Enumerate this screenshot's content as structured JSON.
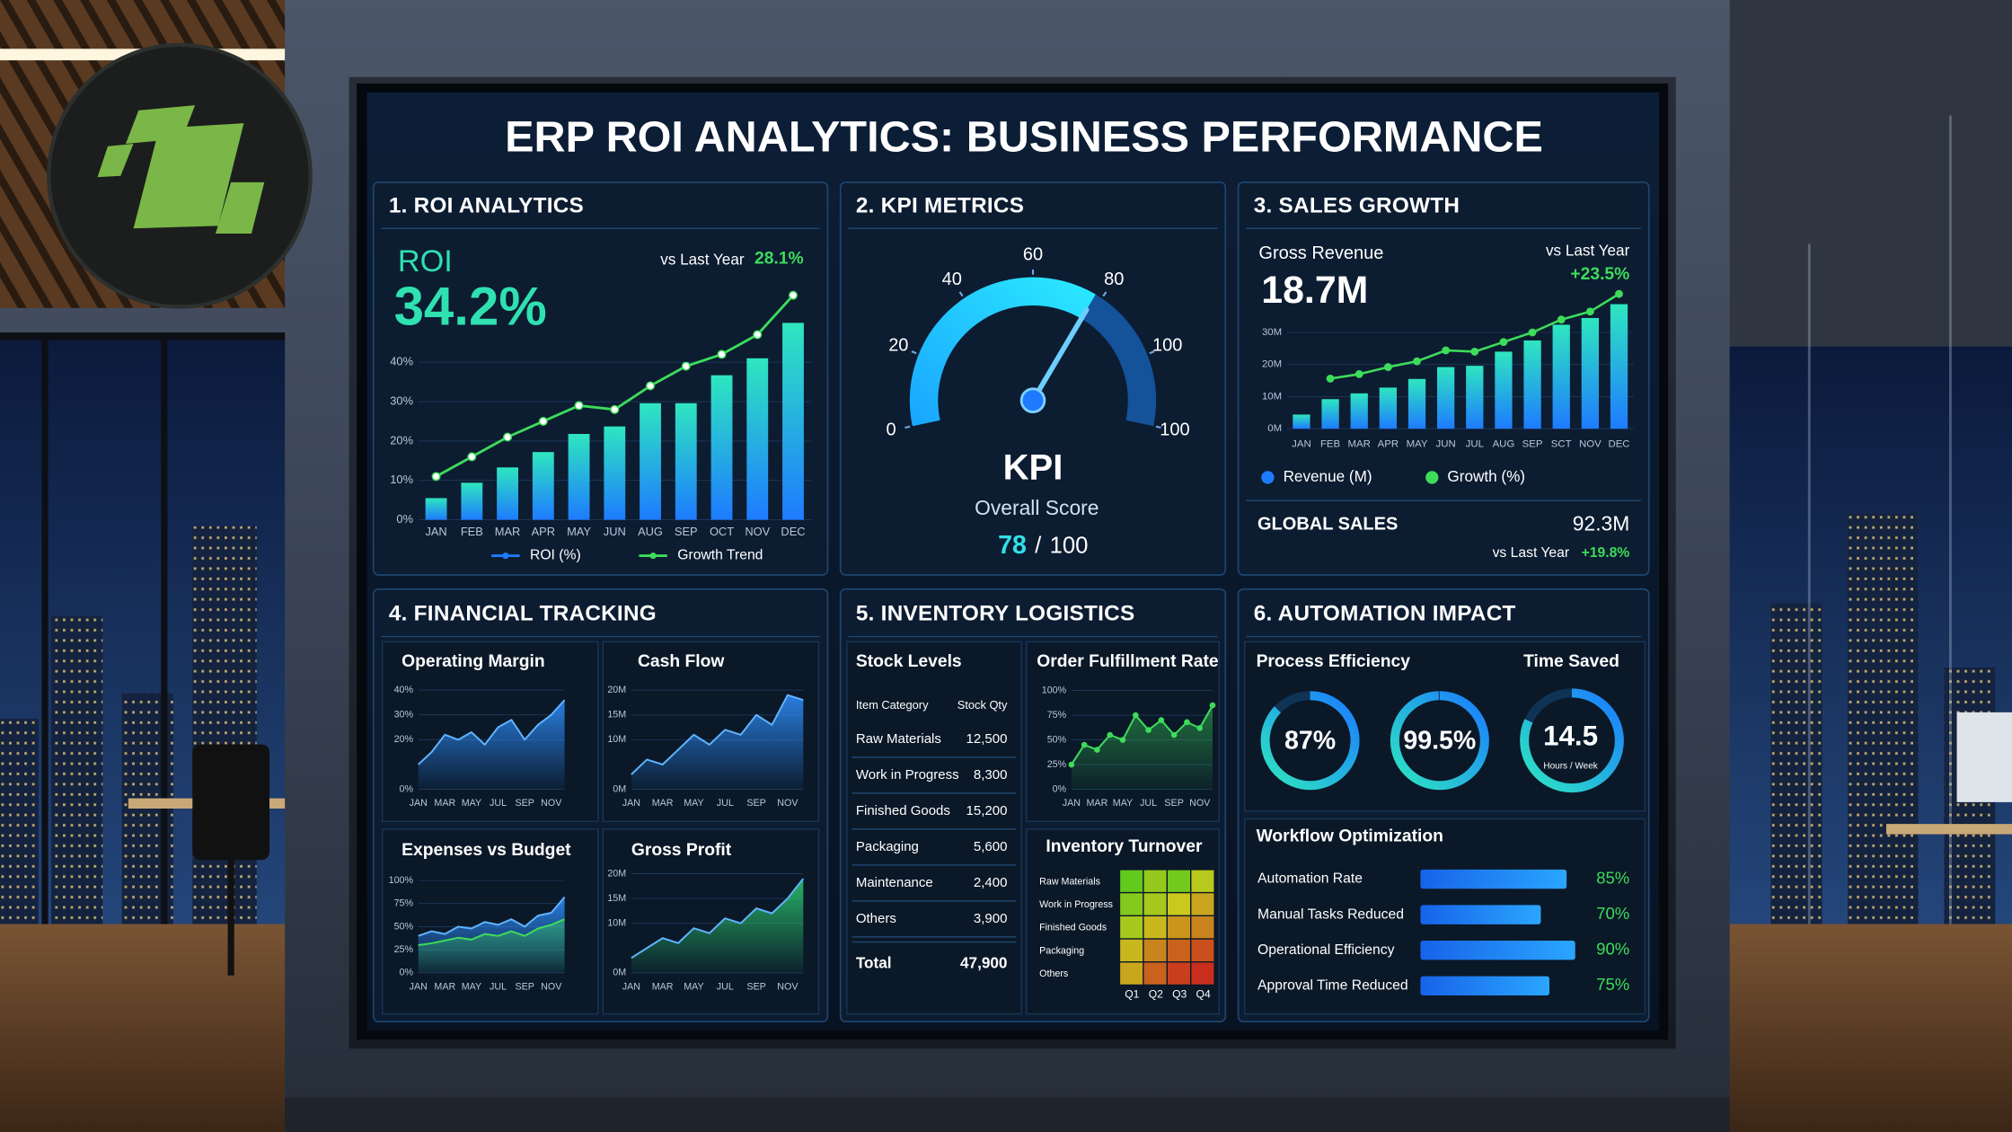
{
  "title": "ERP ROI ANALYTICS: BUSINESS PERFORMANCE",
  "roi": {
    "heading": "1. ROI ANALYTICS",
    "label": "ROI",
    "value": "34.2%",
    "compare_label": "vs Last Year",
    "compare_value": "28.1%",
    "chart": {
      "type": "bar",
      "categories": [
        "JAN",
        "FEB",
        "MAR",
        "APR",
        "MAY",
        "JUN",
        "AUG",
        "SEP",
        "OCT",
        "NOV",
        "DEC"
      ],
      "series": [
        {
          "name": "ROI (%)",
          "color": "#1e7bff",
          "values": [
            5.5,
            9.4,
            13.3,
            17.2,
            21.8,
            23.7,
            29.6,
            29.6,
            36.7,
            41,
            50
          ]
        },
        {
          "name": "Growth Trend",
          "type": "line",
          "markers": true,
          "color": "#3ddc5a",
          "values": [
            11,
            16,
            21,
            25,
            29,
            28,
            34,
            39,
            42,
            47,
            57
          ]
        }
      ],
      "ylim": [
        0,
        58
      ],
      "yticks": [
        {
          "value": 0,
          "label": "0%"
        },
        {
          "value": 10,
          "label": "10%"
        },
        {
          "value": 20,
          "label": "20%"
        },
        {
          "value": 30,
          "label": "30%"
        },
        {
          "value": 40,
          "label": "40%"
        }
      ]
    }
  },
  "kpi": {
    "heading": "2. KPI METRICS",
    "gauge_ticks": [
      0,
      20,
      40,
      60,
      80,
      100,
      100
    ],
    "label": "KPI",
    "sublabel": "Overall Score",
    "score": 78,
    "score_separator": "/",
    "score_max": 100
  },
  "sales": {
    "heading": "3. SALES GROWTH",
    "revenue_label": "Gross Revenue",
    "revenue": "18.7M",
    "compare_label": "vs Last Year",
    "compare_value": "+23.5%",
    "chart": {
      "type": "bar",
      "categories": [
        "JAN",
        "FEB",
        "MAR",
        "APR",
        "MAY",
        "JUN",
        "JUL",
        "AUG",
        "SEP",
        "SCT",
        "NOV",
        "DEC"
      ],
      "series": [
        {
          "name": "Revenue (M)",
          "color": "#1e7bff",
          "values": [
            4.4,
            9.2,
            11,
            12.8,
            15.5,
            19.2,
            19.6,
            24,
            27.5,
            32.4,
            34.5,
            38.8
          ]
        },
        {
          "name": "Growth (%)",
          "type": "line",
          "markers": true,
          "color": "#3ddc5a",
          "values": [
            null,
            15.6,
            17,
            19.2,
            21,
            24.4,
            24,
            27,
            30,
            34,
            36.5,
            42
          ]
        }
      ],
      "ylim": [
        0,
        42
      ],
      "yticks": [
        {
          "value": 0,
          "label": "0M"
        },
        {
          "value": 10,
          "label": "10M"
        },
        {
          "value": 20,
          "label": "20M"
        },
        {
          "value": 30,
          "label": "30M"
        }
      ]
    },
    "global_label": "GLOBAL SALES",
    "global_value": "92.3M",
    "global_compare_label": "vs Last Year",
    "global_compare_value": "+19.8%"
  },
  "financial": {
    "heading": "4. FINANCIAL TRACKING",
    "charts": [
      {
        "title": "Operating Margin",
        "type": "area",
        "categories": [
          "JAN",
          null,
          "MAR",
          null,
          "MAY",
          null,
          "JUL",
          null,
          "SEP",
          null,
          "NOV",
          null
        ],
        "series": [
          {
            "color": "#2f8fff",
            "values": [
              10,
              15,
              22,
              20,
              23,
              18,
              25,
              28,
              20,
              26,
              30,
              36
            ]
          }
        ],
        "ylim": [
          0,
          45
        ],
        "yticks": [
          {
            "value": 0,
            "label": "0%"
          },
          {
            "value": 20,
            "label": "20%"
          },
          {
            "value": 30,
            "label": "30%"
          },
          {
            "value": 40,
            "label": "40%"
          }
        ]
      },
      {
        "title": "Cash Flow",
        "type": "area",
        "categories": [
          "JAN",
          null,
          "MAR",
          null,
          "MAY",
          null,
          "JUL",
          null,
          "SEP",
          null,
          "NOV",
          null
        ],
        "series": [
          {
            "color": "#2f8fff",
            "values": [
              3,
              6,
              5,
              8,
              11,
              9,
              12,
              11,
              15,
              13,
              19,
              18
            ]
          }
        ],
        "ylim": [
          0,
          22
        ],
        "yticks": [
          {
            "value": 0,
            "label": "0M"
          },
          {
            "value": 10,
            "label": "10M"
          },
          {
            "value": 15,
            "label": "15M"
          },
          {
            "value": 20,
            "label": "20M"
          }
        ]
      },
      {
        "title": "Expenses vs Budget",
        "type": "area",
        "categories": [
          "JAN",
          null,
          "MAR",
          null,
          "MAY",
          null,
          "JUL",
          null,
          "SEP",
          null,
          "NOV",
          null
        ],
        "series": [
          {
            "color": "#2f8fff",
            "values": [
              40,
              45,
              42,
              50,
              48,
              55,
              52,
              58,
              50,
              62,
              65,
              82
            ]
          },
          {
            "type": "line",
            "color": "#3ddc5a",
            "values": [
              30,
              32,
              35,
              38,
              36,
              42,
              40,
              45,
              40,
              48,
              52,
              58
            ]
          }
        ],
        "ylim": [
          0,
          100
        ],
        "yticks": [
          {
            "value": 0,
            "label": "0%"
          },
          {
            "value": 25,
            "label": "25%"
          },
          {
            "value": 50,
            "label": "50%"
          },
          {
            "value": 75,
            "label": "75%"
          },
          {
            "value": 100,
            "label": "100%"
          }
        ]
      },
      {
        "title": "Gross Profit",
        "type": "area",
        "categories": [
          "JAN",
          null,
          "MAR",
          null,
          "MAY",
          null,
          "JUL",
          null,
          "SEP",
          null,
          "NOV",
          null
        ],
        "series": [
          {
            "color": "#2ecc71",
            "values": [
              3,
              5,
              7,
              6,
              9,
              8,
              11,
              10,
              13,
              12,
              15,
              19
            ]
          }
        ],
        "ylim": [
          0,
          22
        ],
        "yticks": [
          {
            "value": 0,
            "label": "0M"
          },
          {
            "value": 10,
            "label": "10M"
          },
          {
            "value": 15,
            "label": "15M"
          },
          {
            "value": 20,
            "label": "20M"
          }
        ]
      }
    ]
  },
  "inventory": {
    "heading": "5. INVENTORY LOGISTICS",
    "stock": {
      "title": "Stock Levels",
      "header": [
        "Item Category",
        "Stock Qty"
      ],
      "rows": [
        [
          "Raw Materials",
          "12,500"
        ],
        [
          "Work in Progress",
          "8,300"
        ],
        [
          "Finished Goods",
          "15,200"
        ],
        [
          "Packaging",
          "5,600"
        ],
        [
          "Maintenance",
          "2,400"
        ],
        [
          "Others",
          "3,900"
        ]
      ],
      "total": [
        "Total",
        "47,900"
      ]
    },
    "fulfillment": {
      "title": "Order Fulfillment Rate",
      "type": "area",
      "categories": [
        "JAN",
        null,
        "MAR",
        null,
        "MAY",
        null,
        "JUL",
        null,
        "SEP",
        null,
        "NOV",
        null
      ],
      "series": [
        {
          "type": "line",
          "markers": true,
          "color": "#3ddc5a",
          "values": [
            25,
            45,
            40,
            55,
            50,
            75,
            60,
            70,
            55,
            68,
            62,
            85
          ]
        }
      ],
      "ylim": [
        0,
        100
      ],
      "yticks": [
        {
          "value": 0,
          "label": "0%"
        },
        {
          "value": 25,
          "label": "25%"
        },
        {
          "value": 50,
          "label": "50%"
        },
        {
          "value": 75,
          "label": "75%"
        },
        {
          "value": 100,
          "label": "100%"
        }
      ]
    },
    "turnover": {
      "title": "Inventory Turnover",
      "rows": [
        "Raw Materials",
        "Work in Progress",
        "Finished Goods",
        "Packaging",
        "Others"
      ],
      "columns": [
        "Q1",
        "Q2",
        "Q3",
        "Q4"
      ],
      "values": [
        [
          20,
          35,
          25,
          45
        ],
        [
          30,
          40,
          50,
          60
        ],
        [
          40,
          55,
          65,
          70
        ],
        [
          55,
          70,
          80,
          85
        ],
        [
          60,
          80,
          90,
          95
        ]
      ],
      "lim": [
        0,
        100
      ]
    }
  },
  "automation": {
    "heading": "6. AUTOMATION IMPACT",
    "efficiency_label": "Process Efficiency",
    "time_label": "Time Saved",
    "rings": {
      "values": [
        87,
        99.5
      ],
      "value_labels": [
        "87%",
        "99.5%"
      ],
      "lim": [
        0,
        100
      ]
    },
    "time_saved": {
      "value": "14.5",
      "unit": "Hours / Week"
    },
    "workflow": {
      "title": "Workflow Optimization",
      "categories": [
        "Automation Rate",
        "Manual Tasks Reduced",
        "Operational Efficiency",
        "Approval Time Reduced"
      ],
      "values": [
        85,
        70,
        90,
        75
      ],
      "value_labels": [
        "85%",
        "70%",
        "90%",
        "75%"
      ],
      "xlim": [
        0,
        100
      ]
    }
  }
}
